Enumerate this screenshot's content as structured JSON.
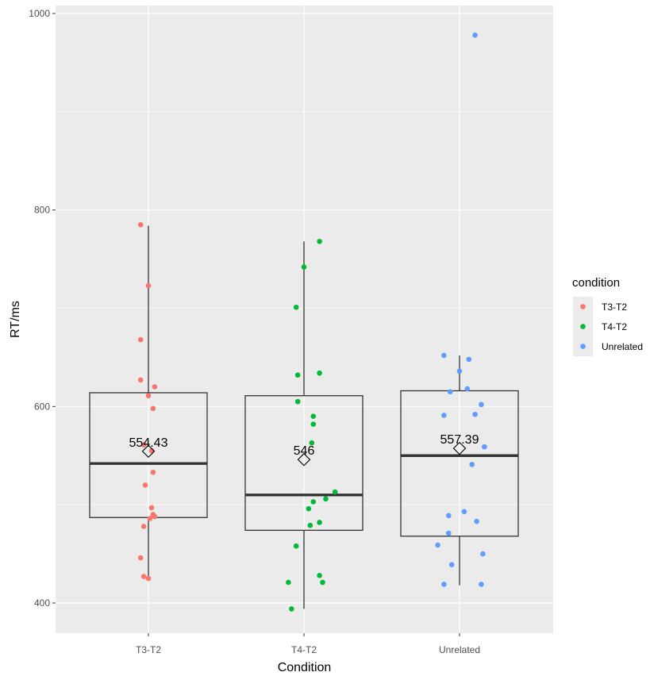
{
  "chart_data": {
    "type": "boxplot",
    "xlabel": "Condition",
    "ylabel": "RT/ms",
    "ylim": [
      370,
      1010
    ],
    "yticks": [
      400,
      600,
      800,
      1000
    ],
    "grid": true,
    "legend": {
      "title": "condition",
      "position": "right",
      "entries": [
        "T3-T2",
        "T4-T2",
        "Unrelated"
      ]
    },
    "categories": [
      "T3-T2",
      "T4-T2",
      "Unrelated"
    ],
    "colors": [
      "#F8766D",
      "#00BA38",
      "#619CFF"
    ],
    "series": [
      {
        "name": "T3-T2",
        "box": {
          "whisker_low": 425,
          "q1": 487,
          "median": 542,
          "q3": 614,
          "whisker_high": 784
        },
        "mean": 554.43,
        "mean_label": "554.43",
        "points": [
          [
            -0.05,
            785
          ],
          [
            0,
            723
          ],
          [
            -0.05,
            668
          ],
          [
            -0.05,
            627
          ],
          [
            0,
            611
          ],
          [
            0.04,
            620
          ],
          [
            0.03,
            598
          ],
          [
            -0.03,
            561
          ],
          [
            0.02,
            555
          ],
          [
            0.03,
            533
          ],
          [
            -0.02,
            520
          ],
          [
            0.02,
            497
          ],
          [
            0.03,
            490
          ],
          [
            0.04,
            488
          ],
          [
            -0.03,
            478
          ],
          [
            -0.05,
            446
          ],
          [
            -0.03,
            427
          ],
          [
            0,
            425
          ],
          [
            0.01,
            486
          ]
        ]
      },
      {
        "name": "T4-T2",
        "box": {
          "whisker_low": 394,
          "q1": 474,
          "median": 510,
          "q3": 611,
          "whisker_high": 768
        },
        "mean": 546,
        "mean_label": "546",
        "points": [
          [
            0.1,
            768
          ],
          [
            0,
            742
          ],
          [
            -0.05,
            701
          ],
          [
            -0.04,
            632
          ],
          [
            0.1,
            634
          ],
          [
            -0.04,
            605
          ],
          [
            0.06,
            590
          ],
          [
            0.06,
            582
          ],
          [
            0.05,
            563
          ],
          [
            0.2,
            513
          ],
          [
            0.14,
            506
          ],
          [
            0.06,
            503
          ],
          [
            0.1,
            482
          ],
          [
            0.04,
            479
          ],
          [
            0.03,
            496
          ],
          [
            -0.05,
            458
          ],
          [
            0.1,
            428
          ],
          [
            0.12,
            421
          ],
          [
            -0.1,
            421
          ],
          [
            -0.08,
            394
          ]
        ]
      },
      {
        "name": "Unrelated",
        "box": {
          "whisker_low": 418,
          "q1": 468,
          "median": 550,
          "q3": 616,
          "whisker_high": 652
        },
        "mean": 557.39,
        "mean_label": "557.39",
        "points": [
          [
            0.1,
            978
          ],
          [
            -0.1,
            652
          ],
          [
            0.06,
            648
          ],
          [
            0,
            636
          ],
          [
            -0.06,
            615
          ],
          [
            0.05,
            618
          ],
          [
            0.14,
            602
          ],
          [
            -0.1,
            591
          ],
          [
            0.1,
            592
          ],
          [
            0.16,
            559
          ],
          [
            0.08,
            541
          ],
          [
            0.03,
            493
          ],
          [
            -0.07,
            489
          ],
          [
            0.11,
            483
          ],
          [
            -0.14,
            459
          ],
          [
            -0.07,
            471
          ],
          [
            0.15,
            450
          ],
          [
            -0.05,
            439
          ],
          [
            0.14,
            419
          ],
          [
            -0.1,
            419
          ]
        ]
      }
    ]
  }
}
